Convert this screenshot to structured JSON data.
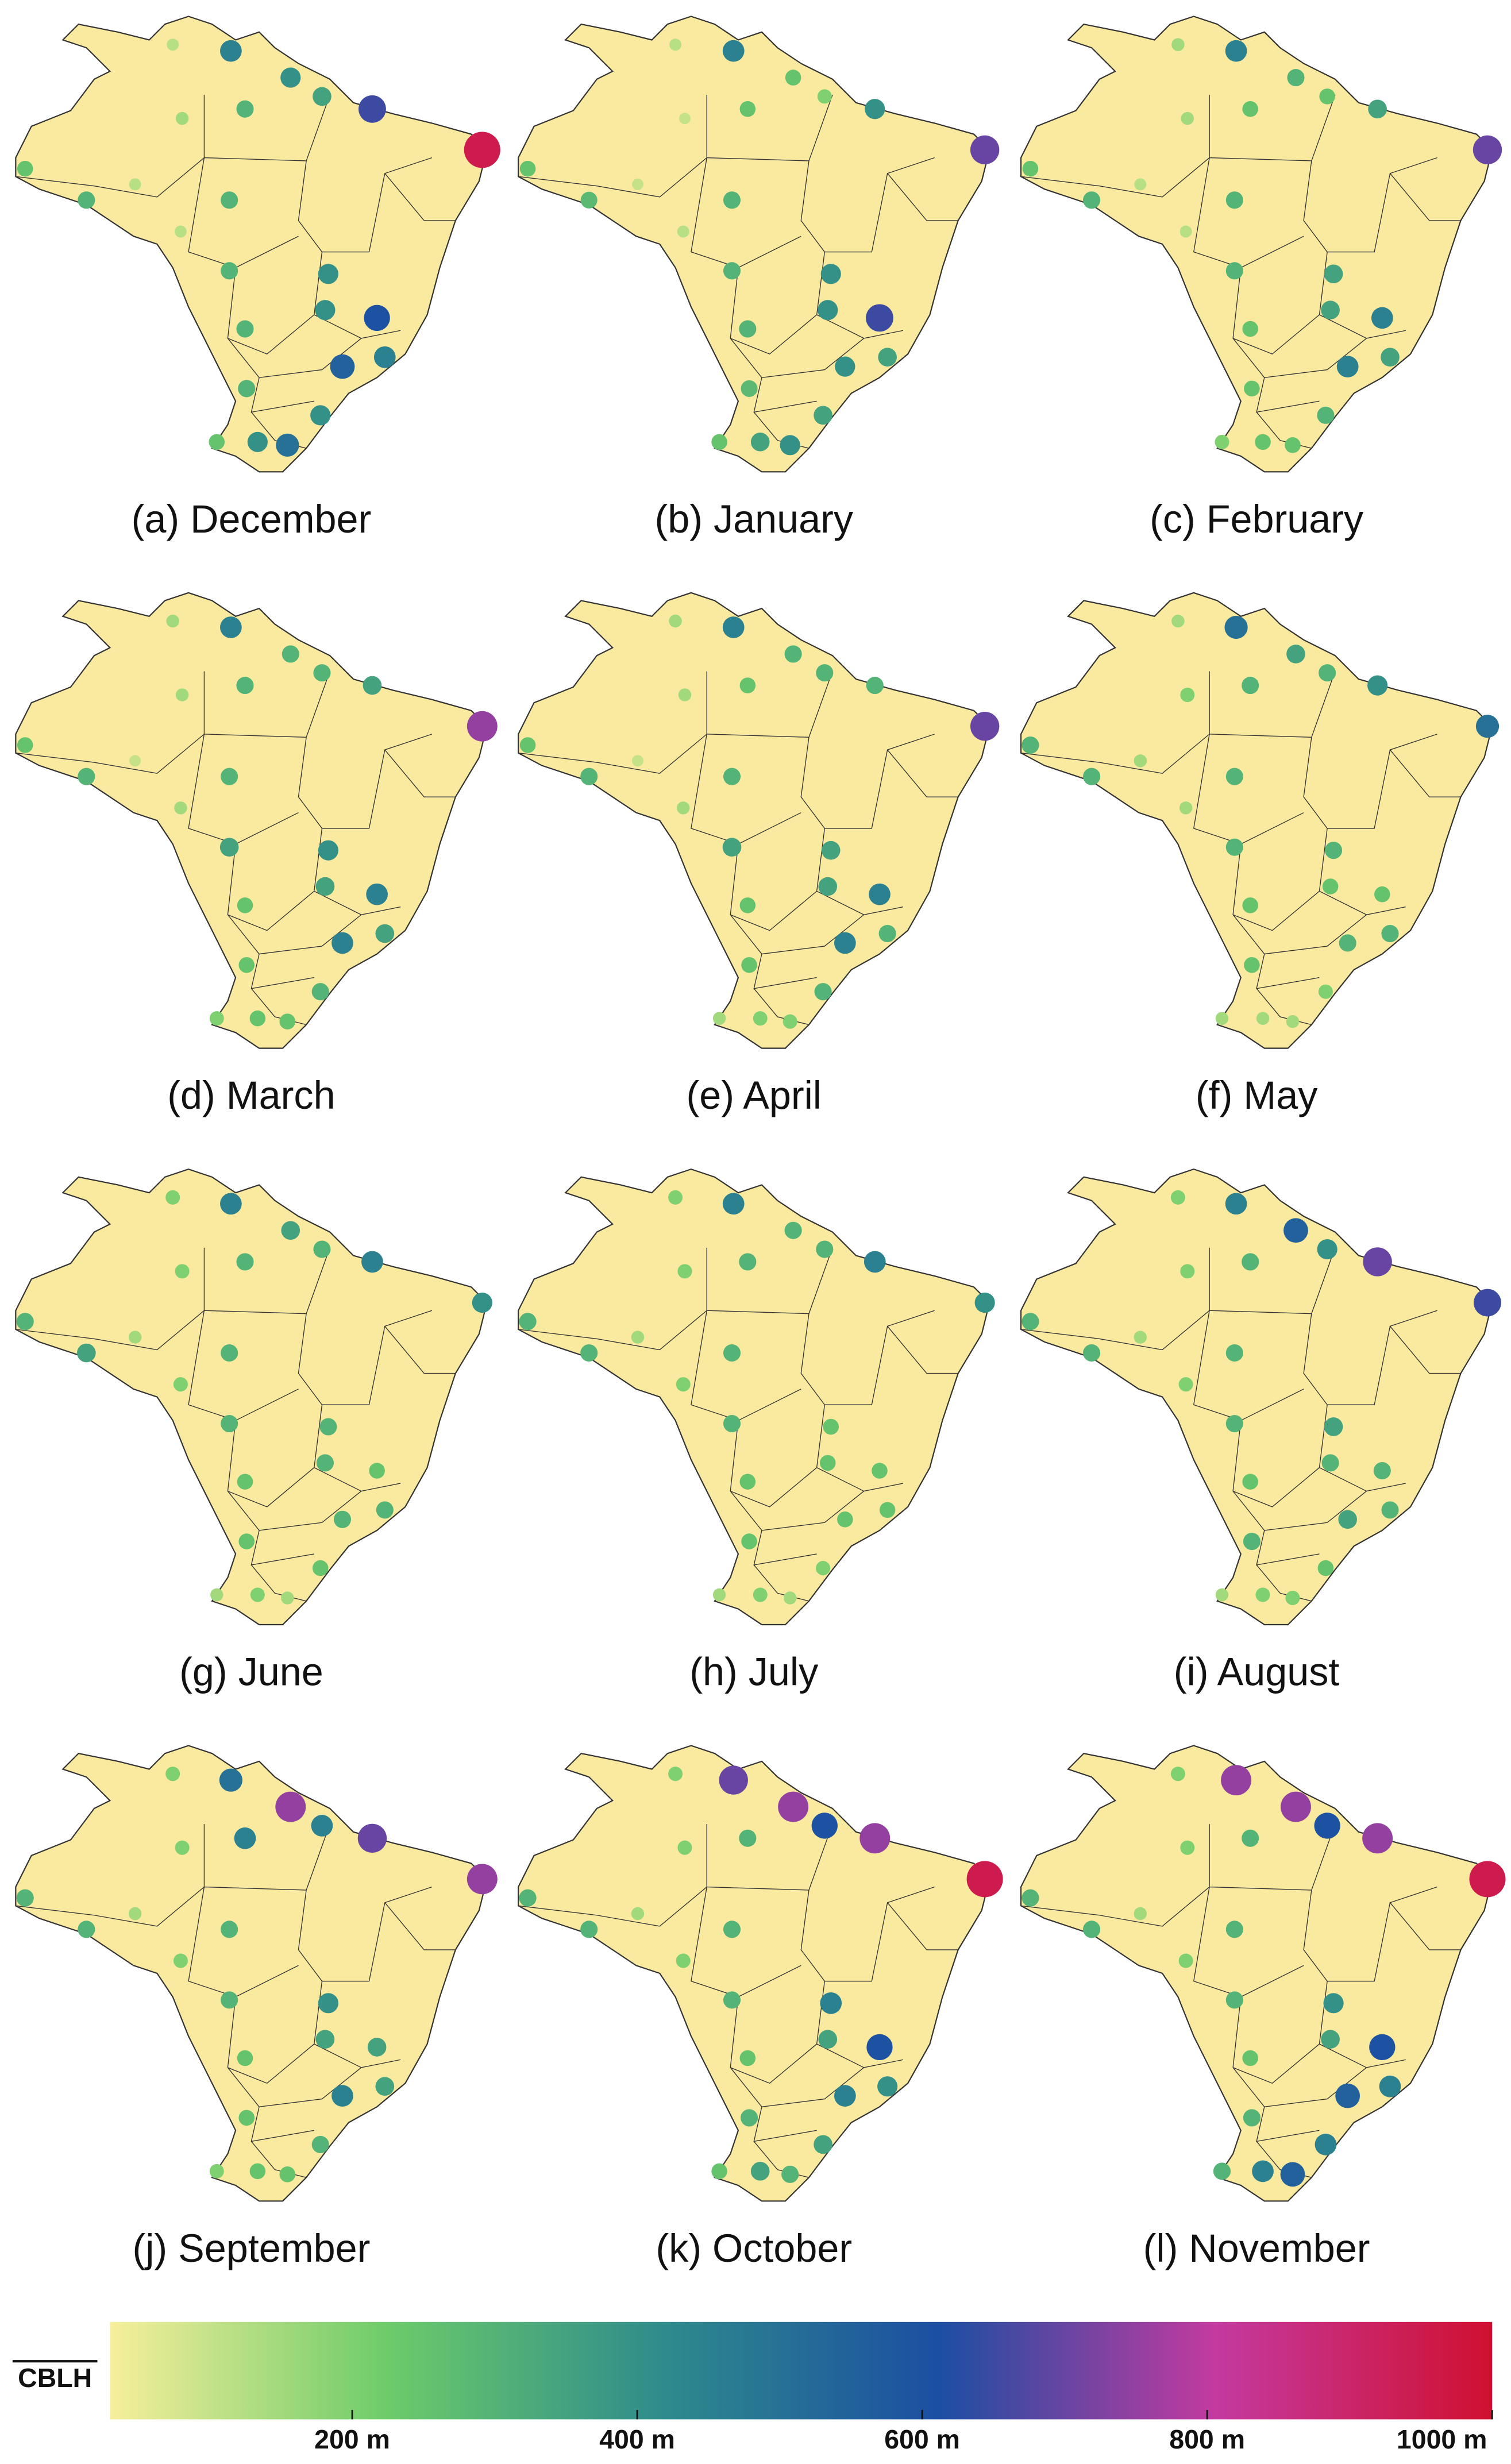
{
  "chart_data": {
    "type": "bubble-map",
    "panels": [
      {
        "label": "(a) December",
        "values": [
          450,
          400,
          350,
          650,
          950,
          300,
          150,
          250,
          300,
          120,
          300,
          120,
          300,
          400,
          400,
          600,
          300,
          550,
          450,
          300,
          400,
          250,
          400,
          500,
          120
        ]
      },
      {
        "label": "(b) January",
        "values": [
          450,
          250,
          200,
          400,
          700,
          250,
          100,
          250,
          280,
          100,
          300,
          120,
          300,
          400,
          400,
          650,
          300,
          400,
          350,
          280,
          350,
          250,
          350,
          400,
          120
        ]
      },
      {
        "label": "(c) February",
        "values": [
          450,
          300,
          250,
          350,
          700,
          250,
          150,
          250,
          300,
          120,
          300,
          120,
          300,
          350,
          350,
          450,
          250,
          450,
          350,
          250,
          300,
          200,
          250,
          250,
          150
        ]
      },
      {
        "label": "(d) March",
        "values": [
          450,
          300,
          300,
          350,
          750,
          300,
          150,
          250,
          300,
          100,
          300,
          150,
          350,
          400,
          350,
          450,
          250,
          450,
          350,
          250,
          300,
          200,
          250,
          250,
          150
        ]
      },
      {
        "label": "(e) April",
        "values": [
          450,
          300,
          300,
          300,
          700,
          250,
          150,
          250,
          300,
          100,
          300,
          150,
          350,
          350,
          350,
          450,
          250,
          450,
          300,
          250,
          300,
          150,
          200,
          200,
          150
        ]
      },
      {
        "label": "(f) May",
        "values": [
          500,
          350,
          300,
          400,
          500,
          300,
          200,
          300,
          300,
          150,
          300,
          150,
          300,
          300,
          250,
          250,
          250,
          300,
          300,
          250,
          200,
          150,
          150,
          150,
          150
        ]
      },
      {
        "label": "(g) June",
        "values": [
          450,
          350,
          300,
          450,
          400,
          300,
          200,
          300,
          350,
          150,
          300,
          200,
          300,
          300,
          300,
          250,
          250,
          300,
          300,
          250,
          250,
          150,
          200,
          150,
          200
        ]
      },
      {
        "label": "(h) July",
        "values": [
          450,
          300,
          300,
          450,
          400,
          300,
          200,
          300,
          300,
          150,
          300,
          200,
          300,
          250,
          250,
          250,
          250,
          250,
          250,
          250,
          200,
          150,
          200,
          150,
          200
        ]
      },
      {
        "label": "(i) August",
        "values": [
          450,
          550,
          400,
          700,
          650,
          300,
          200,
          300,
          300,
          150,
          300,
          200,
          300,
          350,
          300,
          300,
          250,
          350,
          300,
          300,
          250,
          150,
          200,
          200,
          200
        ]
      },
      {
        "label": "(j) September",
        "values": [
          500,
          750,
          450,
          700,
          750,
          450,
          200,
          300,
          300,
          150,
          300,
          200,
          300,
          400,
          350,
          350,
          250,
          450,
          350,
          250,
          300,
          200,
          250,
          250,
          200
        ]
      },
      {
        "label": "(k) October",
        "values": [
          700,
          750,
          600,
          750,
          950,
          300,
          200,
          300,
          300,
          150,
          300,
          200,
          300,
          450,
          350,
          600,
          250,
          450,
          400,
          300,
          350,
          250,
          350,
          300,
          200
        ]
      },
      {
        "label": "(l) November",
        "values": [
          750,
          750,
          600,
          750,
          950,
          300,
          200,
          300,
          300,
          150,
          300,
          200,
          300,
          400,
          350,
          600,
          250,
          550,
          450,
          300,
          450,
          300,
          450,
          550,
          200
        ]
      }
    ],
    "colorbar": {
      "title": "CBLH",
      "lim": [
        30,
        1000
      ],
      "ticks": [
        {
          "value": 200,
          "label": "200 m"
        },
        {
          "value": 400,
          "label": "400 m"
        },
        {
          "value": 600,
          "label": "600 m"
        },
        {
          "value": 800,
          "label": "800 m"
        },
        {
          "value": 1000,
          "label": "1000 m"
        }
      ],
      "colors": [
        "#f7ef9b",
        "#6dcc6a",
        "#2e8b8b",
        "#1c4ea3",
        "#c43aa0",
        "#d01030"
      ]
    }
  }
}
